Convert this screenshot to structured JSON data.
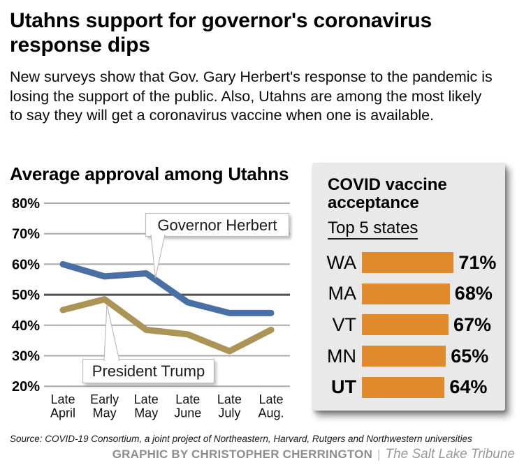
{
  "header": {
    "title": "Utahns support for governor's coronavirus response dips",
    "subtitle": "New surveys show that Gov. Gary Herbert's response to the pandemic is losing the support of the public. Also, Utahns are among the most likely to say they will get a coronavirus vaccine when one is available."
  },
  "colors": {
    "herbert_blue": "#4a6fa4",
    "trump_gold": "#ab9455",
    "bar_orange": "#df8a2d",
    "panel_bg": "#e9e9e9",
    "gridline": "#a9a9a9",
    "gridline_50pct": "#4f4f4f",
    "callout_border": "#bdbdbd",
    "credit_gray": "#8e8e8e"
  },
  "chart_data": [
    {
      "type": "line",
      "title": "Average approval among Utahns",
      "categories": [
        "Late April",
        "Early May",
        "Late May",
        "Late June",
        "Late July",
        "Late Aug."
      ],
      "series": [
        {
          "name": "Governor Herbert",
          "values": [
            60,
            56,
            57,
            47.5,
            44,
            44
          ],
          "color": "#4a6fa4"
        },
        {
          "name": "President Trump",
          "values": [
            45,
            48.5,
            38.5,
            37,
            31.5,
            38.5
          ],
          "color": "#ab9455"
        }
      ],
      "yticks": [
        80,
        70,
        60,
        50,
        40,
        30,
        20
      ],
      "ytick_labels": [
        "80%",
        "70%",
        "60%",
        "50%",
        "40%",
        "30%",
        "20%"
      ],
      "ylim": [
        20,
        80
      ],
      "grid": true,
      "emphasized_gridline": 50,
      "annotations": [
        {
          "label": "Governor Herbert",
          "series": 0
        },
        {
          "label": "President Trump",
          "series": 1
        }
      ]
    },
    {
      "type": "bar",
      "title": "COVID vaccine acceptance",
      "subtitle": "Top 5 states",
      "categories": [
        "WA",
        "MA",
        "VT",
        "MN",
        "UT"
      ],
      "values": [
        71,
        68,
        67,
        65,
        64
      ],
      "value_labels": [
        "71%",
        "68%",
        "67%",
        "65%",
        "64%"
      ],
      "highlight_category": "UT",
      "bar_color": "#df8a2d"
    }
  ],
  "footer": {
    "source": "Source: COVID-19 Consortium, a joint project of Northeastern, Harvard, Rutgers and Northwestern universities",
    "credit": "GRAPHIC BY CHRISTOPHER CHERRINGTON",
    "credit_separator": "|",
    "publication": "The Salt Lake Tribune"
  }
}
